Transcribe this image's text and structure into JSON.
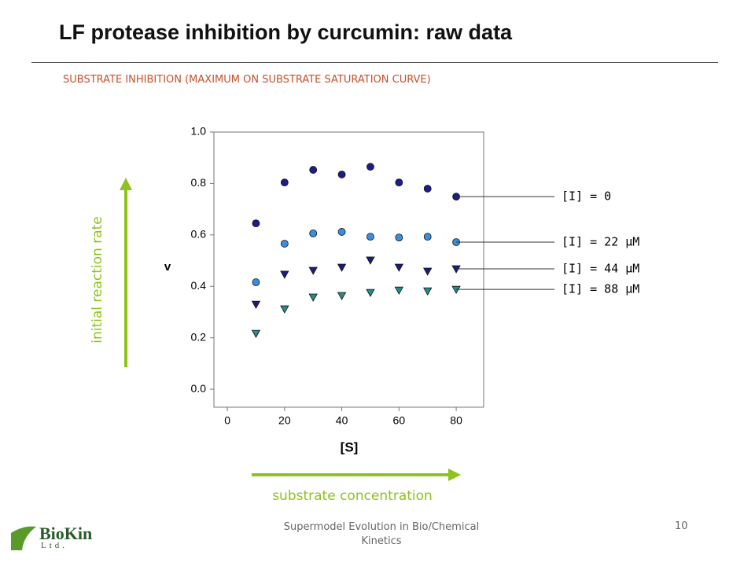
{
  "slide": {
    "title": "LF protease inhibition by curcumin: raw data",
    "subtitle": "SUBSTRATE INHIBITION (MAXIMUM ON SUBSTRATE SATURATION CURVE)",
    "y_arrow_label": "initial reaction rate",
    "x_arrow_label": "substrate concentration",
    "footer": "Supermodel Evolution in Bio/Chemical Kinetics",
    "page_number": "10",
    "logo": {
      "name": "BioKin",
      "suffix": "Ltd."
    }
  },
  "chart_data": {
    "type": "scatter",
    "x_label": "[S]",
    "y_label": "v",
    "x": [
      10,
      20,
      30,
      40,
      50,
      60,
      70,
      80
    ],
    "series": [
      {
        "name": "[I] = 0",
        "color": "#1c1c8c",
        "marker": "circle",
        "values": [
          0.645,
          0.804,
          0.853,
          0.835,
          0.865,
          0.804,
          0.78,
          0.749
        ]
      },
      {
        "name": "[I] = 22 μM",
        "color": "#3a8ee0",
        "marker": "circle",
        "values": [
          0.416,
          0.566,
          0.606,
          0.612,
          0.593,
          0.59,
          0.593,
          0.572
        ]
      },
      {
        "name": "[I] = 44 μM",
        "color": "#1c1c80",
        "marker": "triangle-down",
        "values": [
          0.33,
          0.447,
          0.462,
          0.474,
          0.502,
          0.474,
          0.459,
          0.468
        ]
      },
      {
        "name": "[I] = 88 μM",
        "color": "#2a8a8a",
        "marker": "triangle-down",
        "values": [
          0.217,
          0.312,
          0.358,
          0.364,
          0.376,
          0.385,
          0.382,
          0.388
        ]
      }
    ],
    "xlim": [
      -4.7,
      89.6
    ],
    "ylim": [
      -0.07,
      1.0
    ],
    "xticks": [
      0,
      20,
      40,
      60,
      80
    ],
    "yticks": [
      {
        "value": 0,
        "label": "0.0"
      },
      {
        "value": 0.2,
        "label": "0.2"
      },
      {
        "value": 0.4,
        "label": "0.4"
      },
      {
        "value": 0.6,
        "label": "0.6"
      },
      {
        "value": 0.8,
        "label": "0.8"
      },
      {
        "value": 1.0,
        "label": "1.0"
      }
    ],
    "grid": false
  }
}
